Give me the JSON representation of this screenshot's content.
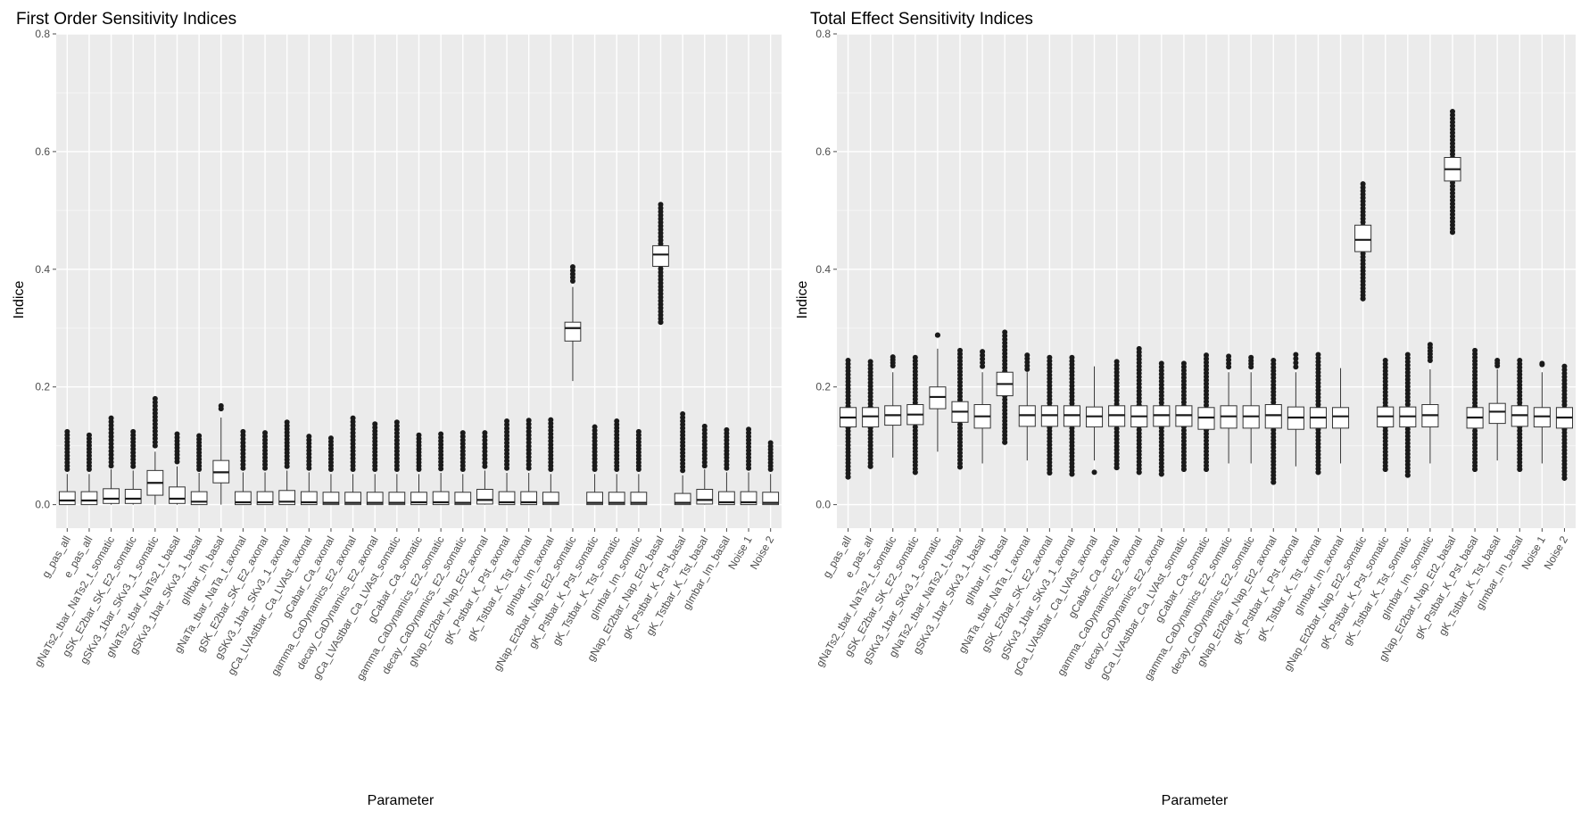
{
  "chart_data": [
    {
      "type": "boxplot",
      "title": "First Order Sensitivity Indices",
      "xlabel": "Parameter",
      "ylabel": "Indice",
      "ylim": [
        -0.04,
        0.8
      ],
      "yticks": [
        "0.0",
        "0.2",
        "0.4",
        "0.6",
        "0.8"
      ],
      "grid": true,
      "categories": [
        "g_pas_all",
        "e_pas_all",
        "gNaTs2_tbar_NaTs2_t_somatic",
        "gSK_E2bar_SK_E2_somatic",
        "gSKv3_1bar_SKv3_1_somatic",
        "gNaTs2_tbar_NaTs2_t_basal",
        "gSKv3_1bar_SKv3_1_basal",
        "gIhbar_Ih_basal",
        "gNaTa_tbar_NaTa_t_axonal",
        "gSK_E2bar_SK_E2_axonal",
        "gSKv3_1bar_SKv3_1_axonal",
        "gCa_LVAstbar_Ca_LVAst_axonal",
        "gCabar_Ca_axonal",
        "gamma_CaDynamics_E2_axonal",
        "decay_CaDynamics_E2_axonal",
        "gCa_LVAstbar_Ca_LVAst_somatic",
        "gCabar_Ca_somatic",
        "gamma_CaDynamics_E2_somatic",
        "decay_CaDynamics_E2_somatic",
        "gNap_Et2bar_Nap_Et2_axonal",
        "gK_Pstbar_K_Pst_axonal",
        "gK_Tstbar_K_Tst_axonal",
        "gImbar_Im_axonal",
        "gNap_Et2bar_Nap_Et2_somatic",
        "gK_Pstbar_K_Pst_somatic",
        "gK_Tstbar_K_Tst_somatic",
        "gImbar_Im_somatic",
        "gNap_Et2bar_Nap_Et2_basal",
        "gK_Pstbar_K_Pst_basal",
        "gK_Tstbar_K_Tst_basal",
        "gImbar_Im_basal",
        "Noise 1",
        "Noise 2"
      ],
      "boxes": [
        {
          "low": 0.0,
          "q1": 0.0,
          "median": 0.007,
          "q3": 0.022,
          "high": 0.052,
          "out_min": 0.06,
          "out_max": 0.124
        },
        {
          "low": 0.0,
          "q1": 0.0,
          "median": 0.007,
          "q3": 0.022,
          "high": 0.052,
          "out_min": 0.06,
          "out_max": 0.118
        },
        {
          "low": 0.0,
          "q1": 0.002,
          "median": 0.01,
          "q3": 0.027,
          "high": 0.06,
          "out_min": 0.066,
          "out_max": 0.147
        },
        {
          "low": 0.0,
          "q1": 0.002,
          "median": 0.01,
          "q3": 0.026,
          "high": 0.058,
          "out_min": 0.065,
          "out_max": 0.124
        },
        {
          "low": 0.0,
          "q1": 0.016,
          "median": 0.037,
          "q3": 0.058,
          "high": 0.09,
          "out_min": 0.1,
          "out_max": 0.18
        },
        {
          "low": 0.0,
          "q1": 0.002,
          "median": 0.01,
          "q3": 0.03,
          "high": 0.065,
          "out_min": 0.073,
          "out_max": 0.12
        },
        {
          "low": 0.0,
          "q1": 0.0,
          "median": 0.005,
          "q3": 0.022,
          "high": 0.054,
          "out_min": 0.06,
          "out_max": 0.117
        },
        {
          "low": 0.0,
          "q1": 0.037,
          "median": 0.055,
          "q3": 0.075,
          "high": 0.148,
          "out_min": 0.163,
          "out_max": 0.168
        },
        {
          "low": 0.0,
          "q1": 0.0,
          "median": 0.004,
          "q3": 0.022,
          "high": 0.055,
          "out_min": 0.062,
          "out_max": 0.124
        },
        {
          "low": 0.0,
          "q1": 0.0,
          "median": 0.004,
          "q3": 0.022,
          "high": 0.055,
          "out_min": 0.062,
          "out_max": 0.122
        },
        {
          "low": 0.0,
          "q1": 0.0,
          "median": 0.005,
          "q3": 0.024,
          "high": 0.058,
          "out_min": 0.065,
          "out_max": 0.14
        },
        {
          "low": 0.0,
          "q1": 0.0,
          "median": 0.004,
          "q3": 0.022,
          "high": 0.055,
          "out_min": 0.062,
          "out_max": 0.116
        },
        {
          "low": 0.0,
          "q1": 0.0,
          "median": 0.003,
          "q3": 0.021,
          "high": 0.052,
          "out_min": 0.06,
          "out_max": 0.113
        },
        {
          "low": 0.0,
          "q1": 0.0,
          "median": 0.003,
          "q3": 0.021,
          "high": 0.052,
          "out_min": 0.06,
          "out_max": 0.147
        },
        {
          "low": 0.0,
          "q1": 0.0,
          "median": 0.003,
          "q3": 0.021,
          "high": 0.052,
          "out_min": 0.06,
          "out_max": 0.137
        },
        {
          "low": 0.0,
          "q1": 0.0,
          "median": 0.003,
          "q3": 0.021,
          "high": 0.052,
          "out_min": 0.06,
          "out_max": 0.14
        },
        {
          "low": 0.0,
          "q1": 0.0,
          "median": 0.004,
          "q3": 0.021,
          "high": 0.052,
          "out_min": 0.06,
          "out_max": 0.118
        },
        {
          "low": 0.0,
          "q1": 0.0,
          "median": 0.004,
          "q3": 0.022,
          "high": 0.054,
          "out_min": 0.061,
          "out_max": 0.12
        },
        {
          "low": 0.0,
          "q1": 0.0,
          "median": 0.003,
          "q3": 0.021,
          "high": 0.052,
          "out_min": 0.06,
          "out_max": 0.122
        },
        {
          "low": 0.0,
          "q1": 0.001,
          "median": 0.008,
          "q3": 0.026,
          "high": 0.058,
          "out_min": 0.065,
          "out_max": 0.122
        },
        {
          "low": 0.0,
          "q1": 0.0,
          "median": 0.004,
          "q3": 0.022,
          "high": 0.054,
          "out_min": 0.062,
          "out_max": 0.142
        },
        {
          "low": 0.0,
          "q1": 0.0,
          "median": 0.004,
          "q3": 0.022,
          "high": 0.054,
          "out_min": 0.062,
          "out_max": 0.143
        },
        {
          "low": 0.0,
          "q1": 0.0,
          "median": 0.003,
          "q3": 0.021,
          "high": 0.052,
          "out_min": 0.06,
          "out_max": 0.144
        },
        {
          "low": 0.21,
          "q1": 0.278,
          "median": 0.3,
          "q3": 0.31,
          "high": 0.37,
          "out_min": 0.38,
          "out_max": 0.404
        },
        {
          "low": 0.0,
          "q1": 0.0,
          "median": 0.003,
          "q3": 0.021,
          "high": 0.052,
          "out_min": 0.06,
          "out_max": 0.132
        },
        {
          "low": 0.0,
          "q1": 0.0,
          "median": 0.003,
          "q3": 0.021,
          "high": 0.052,
          "out_min": 0.06,
          "out_max": 0.142
        },
        {
          "low": 0.0,
          "q1": 0.0,
          "median": 0.003,
          "q3": 0.021,
          "high": 0.052,
          "out_min": 0.06,
          "out_max": 0.124
        },
        {
          "low": 0.35,
          "q1": 0.405,
          "median": 0.425,
          "q3": 0.44,
          "high": 0.49,
          "out_min": 0.31,
          "out_max": 0.51
        },
        {
          "low": 0.0,
          "q1": 0.0,
          "median": 0.003,
          "q3": 0.019,
          "high": 0.05,
          "out_min": 0.058,
          "out_max": 0.154
        },
        {
          "low": 0.0,
          "q1": 0.001,
          "median": 0.008,
          "q3": 0.026,
          "high": 0.06,
          "out_min": 0.066,
          "out_max": 0.133
        },
        {
          "low": 0.0,
          "q1": 0.0,
          "median": 0.004,
          "q3": 0.022,
          "high": 0.055,
          "out_min": 0.062,
          "out_max": 0.127
        },
        {
          "low": 0.0,
          "q1": 0.0,
          "median": 0.004,
          "q3": 0.022,
          "high": 0.055,
          "out_min": 0.062,
          "out_max": 0.128
        },
        {
          "low": 0.0,
          "q1": 0.0,
          "median": 0.003,
          "q3": 0.021,
          "high": 0.052,
          "out_min": 0.06,
          "out_max": 0.105
        }
      ]
    },
    {
      "type": "boxplot",
      "title": "Total Effect Sensitivity Indices",
      "xlabel": "Parameter",
      "ylabel": "Indice",
      "ylim": [
        -0.04,
        0.8
      ],
      "yticks": [
        "0.0",
        "0.2",
        "0.4",
        "0.6",
        "0.8"
      ],
      "grid": true,
      "categories": [
        "g_pas_all",
        "e_pas_all",
        "gNaTs2_tbar_NaTs2_t_somatic",
        "gSK_E2bar_SK_E2_somatic",
        "gSKv3_1bar_SKv3_1_somatic",
        "gNaTs2_tbar_NaTs2_t_basal",
        "gSKv3_1bar_SKv3_1_basal",
        "gIhbar_Ih_basal",
        "gNaTa_tbar_NaTa_t_axonal",
        "gSK_E2bar_SK_E2_axonal",
        "gSKv3_1bar_SKv3_1_axonal",
        "gCa_LVAstbar_Ca_LVAst_axonal",
        "gCabar_Ca_axonal",
        "gamma_CaDynamics_E2_axonal",
        "decay_CaDynamics_E2_axonal",
        "gCa_LVAstbar_Ca_LVAst_somatic",
        "gCabar_Ca_somatic",
        "gamma_CaDynamics_E2_somatic",
        "decay_CaDynamics_E2_somatic",
        "gNap_Et2bar_Nap_Et2_axonal",
        "gK_Pstbar_K_Pst_axonal",
        "gK_Tstbar_K_Tst_axonal",
        "gImbar_Im_axonal",
        "gNap_Et2bar_Nap_Et2_somatic",
        "gK_Pstbar_K_Pst_somatic",
        "gK_Tstbar_K_Tst_somatic",
        "gImbar_Im_somatic",
        "gNap_Et2bar_Nap_Et2_basal",
        "gK_Pstbar_K_Pst_basal",
        "gK_Tstbar_K_Tst_basal",
        "gImbar_Im_basal",
        "Noise 1",
        "Noise 2"
      ],
      "boxes": [
        {
          "low": 0.075,
          "q1": 0.132,
          "median": 0.148,
          "q3": 0.165,
          "high": 0.22,
          "out_min": 0.047,
          "out_max": 0.245
        },
        {
          "low": 0.075,
          "q1": 0.132,
          "median": 0.15,
          "q3": 0.165,
          "high": 0.22,
          "out_min": 0.065,
          "out_max": 0.243
        },
        {
          "low": 0.08,
          "q1": 0.135,
          "median": 0.152,
          "q3": 0.168,
          "high": 0.225,
          "out_min": 0.236,
          "out_max": 0.251
        },
        {
          "low": 0.075,
          "q1": 0.136,
          "median": 0.153,
          "q3": 0.17,
          "high": 0.225,
          "out_min": 0.055,
          "out_max": 0.25
        },
        {
          "low": 0.09,
          "q1": 0.163,
          "median": 0.183,
          "q3": 0.2,
          "high": 0.265,
          "out_min": 0.288,
          "out_max": 0.288
        },
        {
          "low": 0.08,
          "q1": 0.14,
          "median": 0.158,
          "q3": 0.175,
          "high": 0.23,
          "out_min": 0.064,
          "out_max": 0.262
        },
        {
          "low": 0.07,
          "q1": 0.13,
          "median": 0.15,
          "q3": 0.17,
          "high": 0.225,
          "out_min": 0.235,
          "out_max": 0.26
        },
        {
          "low": 0.13,
          "q1": 0.185,
          "median": 0.205,
          "q3": 0.225,
          "high": 0.265,
          "out_min": 0.106,
          "out_max": 0.293
        },
        {
          "low": 0.075,
          "q1": 0.133,
          "median": 0.152,
          "q3": 0.168,
          "high": 0.225,
          "out_min": 0.23,
          "out_max": 0.254
        },
        {
          "low": 0.075,
          "q1": 0.133,
          "median": 0.152,
          "q3": 0.168,
          "high": 0.225,
          "out_min": 0.054,
          "out_max": 0.25
        },
        {
          "low": 0.075,
          "q1": 0.133,
          "median": 0.152,
          "q3": 0.168,
          "high": 0.225,
          "out_min": 0.052,
          "out_max": 0.25
        },
        {
          "low": 0.075,
          "q1": 0.132,
          "median": 0.15,
          "q3": 0.166,
          "high": 0.235,
          "out_min": 0.055,
          "out_max": 0.055
        },
        {
          "low": 0.075,
          "q1": 0.133,
          "median": 0.152,
          "q3": 0.168,
          "high": 0.225,
          "out_min": 0.063,
          "out_max": 0.243
        },
        {
          "low": 0.075,
          "q1": 0.132,
          "median": 0.15,
          "q3": 0.168,
          "high": 0.225,
          "out_min": 0.055,
          "out_max": 0.265
        },
        {
          "low": 0.075,
          "q1": 0.133,
          "median": 0.152,
          "q3": 0.168,
          "high": 0.225,
          "out_min": 0.052,
          "out_max": 0.24
        },
        {
          "low": 0.075,
          "q1": 0.133,
          "median": 0.152,
          "q3": 0.168,
          "high": 0.225,
          "out_min": 0.06,
          "out_max": 0.24
        },
        {
          "low": 0.07,
          "q1": 0.128,
          "median": 0.148,
          "q3": 0.165,
          "high": 0.225,
          "out_min": 0.06,
          "out_max": 0.254
        },
        {
          "low": 0.07,
          "q1": 0.13,
          "median": 0.15,
          "q3": 0.168,
          "high": 0.225,
          "out_min": 0.234,
          "out_max": 0.252
        },
        {
          "low": 0.07,
          "q1": 0.13,
          "median": 0.15,
          "q3": 0.168,
          "high": 0.225,
          "out_min": 0.234,
          "out_max": 0.25
        },
        {
          "low": 0.065,
          "q1": 0.13,
          "median": 0.152,
          "q3": 0.17,
          "high": 0.235,
          "out_min": 0.038,
          "out_max": 0.245
        },
        {
          "low": 0.065,
          "q1": 0.128,
          "median": 0.148,
          "q3": 0.166,
          "high": 0.225,
          "out_min": 0.234,
          "out_max": 0.255
        },
        {
          "low": 0.065,
          "q1": 0.13,
          "median": 0.148,
          "q3": 0.165,
          "high": 0.225,
          "out_min": 0.055,
          "out_max": 0.255
        },
        {
          "low": 0.07,
          "q1": 0.13,
          "median": 0.15,
          "q3": 0.165,
          "high": 0.232,
          "out_min": 0.232,
          "out_max": 0.232
        },
        {
          "low": 0.375,
          "q1": 0.43,
          "median": 0.45,
          "q3": 0.475,
          "high": 0.52,
          "out_min": 0.35,
          "out_max": 0.545
        },
        {
          "low": 0.075,
          "q1": 0.132,
          "median": 0.15,
          "q3": 0.166,
          "high": 0.225,
          "out_min": 0.06,
          "out_max": 0.245
        },
        {
          "low": 0.075,
          "q1": 0.132,
          "median": 0.15,
          "q3": 0.166,
          "high": 0.225,
          "out_min": 0.05,
          "out_max": 0.255
        },
        {
          "low": 0.07,
          "q1": 0.132,
          "median": 0.152,
          "q3": 0.17,
          "high": 0.23,
          "out_min": 0.245,
          "out_max": 0.272
        },
        {
          "low": 0.49,
          "q1": 0.55,
          "median": 0.57,
          "q3": 0.59,
          "high": 0.645,
          "out_min": 0.463,
          "out_max": 0.668
        },
        {
          "low": 0.075,
          "q1": 0.13,
          "median": 0.148,
          "q3": 0.165,
          "high": 0.228,
          "out_min": 0.06,
          "out_max": 0.262
        },
        {
          "low": 0.075,
          "q1": 0.138,
          "median": 0.158,
          "q3": 0.172,
          "high": 0.23,
          "out_min": 0.236,
          "out_max": 0.245
        },
        {
          "low": 0.07,
          "q1": 0.133,
          "median": 0.152,
          "q3": 0.168,
          "high": 0.225,
          "out_min": 0.06,
          "out_max": 0.245
        },
        {
          "low": 0.07,
          "q1": 0.132,
          "median": 0.15,
          "q3": 0.165,
          "high": 0.225,
          "out_min": 0.238,
          "out_max": 0.24
        },
        {
          "low": 0.065,
          "q1": 0.13,
          "median": 0.148,
          "q3": 0.165,
          "high": 0.225,
          "out_min": 0.045,
          "out_max": 0.235
        }
      ]
    }
  ]
}
